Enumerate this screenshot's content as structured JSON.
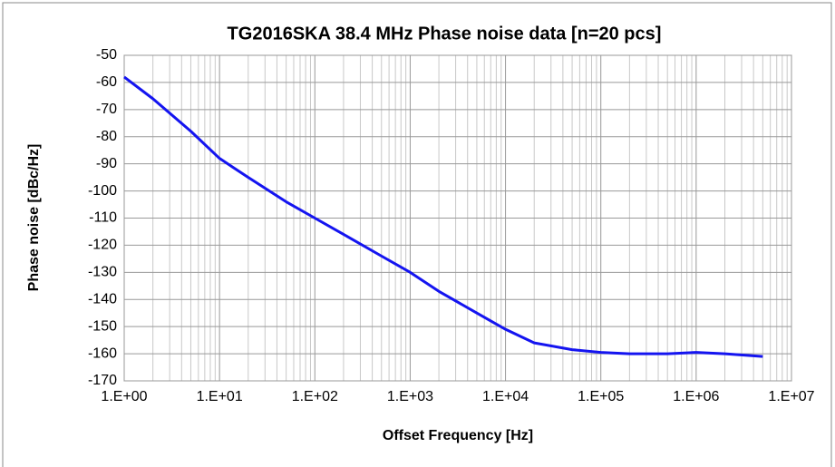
{
  "chart_data": {
    "type": "line",
    "title": "TG2016SKA 38.4 MHz Phase noise data [n=20 pcs]",
    "xlabel": "Offset Frequency [Hz]",
    "ylabel": "Phase noise [dBc/Hz]",
    "x": [
      1,
      2,
      5,
      10,
      20,
      50,
      100,
      200,
      500,
      1000,
      2000,
      5000,
      10000,
      20000,
      50000,
      100000,
      200000,
      500000,
      1000000,
      2000000,
      5000000
    ],
    "values": [
      -58,
      -66,
      -78,
      -88,
      -95,
      -104,
      -110,
      -116,
      -124,
      -130,
      -137,
      -145,
      -151,
      -156,
      -158.5,
      -159.5,
      -160,
      -160,
      -159.5,
      -160,
      -161
    ],
    "color": "#1414f0",
    "xscale": "log",
    "xlim": [
      1,
      10000000
    ],
    "xticks": [
      {
        "value": 1,
        "label": "1.E+00"
      },
      {
        "value": 10,
        "label": "1.E+01"
      },
      {
        "value": 100,
        "label": "1.E+02"
      },
      {
        "value": 1000,
        "label": "1.E+03"
      },
      {
        "value": 10000,
        "label": "1.E+04"
      },
      {
        "value": 100000,
        "label": "1.E+05"
      },
      {
        "value": 1000000,
        "label": "1.E+06"
      },
      {
        "value": 10000000,
        "label": "1.E+07"
      }
    ],
    "ylim": [
      -170,
      -50
    ],
    "yticks": [
      -50,
      -60,
      -70,
      -80,
      -90,
      -100,
      -110,
      -120,
      -130,
      -140,
      -150,
      -160,
      -170
    ],
    "grid": true,
    "minor_grid": true
  }
}
